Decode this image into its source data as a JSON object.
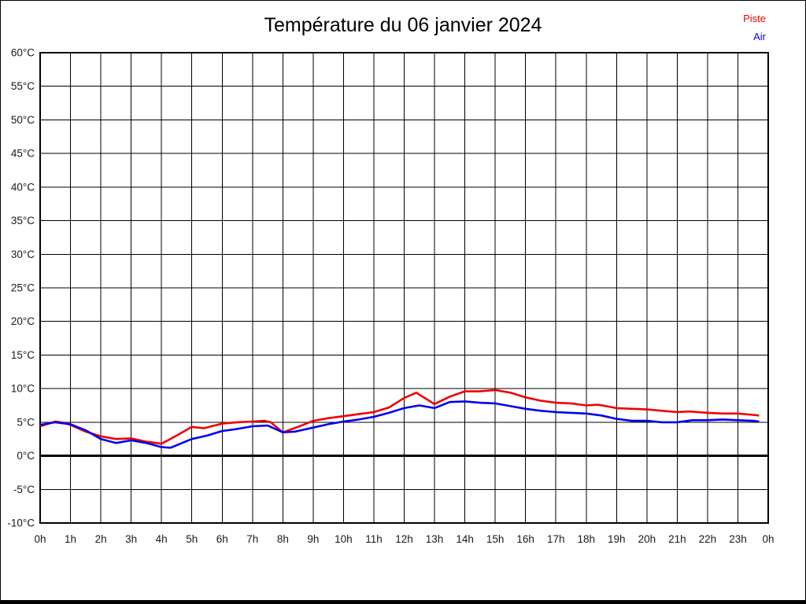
{
  "page": {
    "background": "#ffffff",
    "border_color": "#000000"
  },
  "chart_data": {
    "type": "line",
    "title": "Température du 06 janvier 2024",
    "xlabel": "",
    "ylabel": "",
    "grid": true,
    "grid_color": "#000000",
    "legend_position": "top-right",
    "x_range": [
      0,
      24
    ],
    "y_range": [
      -10,
      60
    ],
    "zero_line": {
      "value": 0,
      "color": "#000000",
      "width": 3
    },
    "x_axis": {
      "unit": "h",
      "ticks": [
        "0h",
        "1h",
        "2h",
        "3h",
        "4h",
        "5h",
        "6h",
        "7h",
        "8h",
        "9h",
        "10h",
        "11h",
        "12h",
        "13h",
        "14h",
        "15h",
        "16h",
        "17h",
        "18h",
        "19h",
        "20h",
        "21h",
        "22h",
        "23h",
        "0h"
      ]
    },
    "y_axis": {
      "unit": "°C",
      "ticks": [
        {
          "value": 60,
          "label": "60°C"
        },
        {
          "value": 55,
          "label": "55°C"
        },
        {
          "value": 50,
          "label": "50°C"
        },
        {
          "value": 45,
          "label": "45°C"
        },
        {
          "value": 40,
          "label": "40°C"
        },
        {
          "value": 35,
          "label": "35°C"
        },
        {
          "value": 30,
          "label": "30°C"
        },
        {
          "value": 25,
          "label": "25°C"
        },
        {
          "value": 20,
          "label": "20°C"
        },
        {
          "value": 15,
          "label": "15°C"
        },
        {
          "value": 10,
          "label": "10°C"
        },
        {
          "value": 5,
          "label": "5°C"
        },
        {
          "value": 0,
          "label": "0°C"
        },
        {
          "value": -5,
          "label": "-5°C"
        },
        {
          "value": -10,
          "label": "-10°C"
        }
      ]
    },
    "series": [
      {
        "name": "Piste",
        "color": "#f00000",
        "points": [
          [
            0,
            4.4
          ],
          [
            0.5,
            5.1
          ],
          [
            0.8,
            4.9
          ],
          [
            1,
            4.6
          ],
          [
            1.5,
            3.6
          ],
          [
            2,
            2.9
          ],
          [
            2.5,
            2.5
          ],
          [
            3,
            2.6
          ],
          [
            3.5,
            2.1
          ],
          [
            4,
            1.8
          ],
          [
            4.5,
            3.0
          ],
          [
            5,
            4.3
          ],
          [
            5.4,
            4.1
          ],
          [
            6,
            4.8
          ],
          [
            6.5,
            5.0
          ],
          [
            7,
            5.1
          ],
          [
            7.4,
            5.2
          ],
          [
            7.6,
            5.0
          ],
          [
            8,
            3.5
          ],
          [
            8.5,
            4.3
          ],
          [
            9,
            5.2
          ],
          [
            9.5,
            5.6
          ],
          [
            10,
            5.9
          ],
          [
            10.5,
            6.2
          ],
          [
            11,
            6.5
          ],
          [
            11.5,
            7.2
          ],
          [
            12,
            8.6
          ],
          [
            12.4,
            9.4
          ],
          [
            13,
            7.7
          ],
          [
            13.5,
            8.8
          ],
          [
            14,
            9.6
          ],
          [
            14.5,
            9.6
          ],
          [
            15,
            9.8
          ],
          [
            15.5,
            9.4
          ],
          [
            16,
            8.7
          ],
          [
            16.5,
            8.2
          ],
          [
            17,
            7.9
          ],
          [
            17.5,
            7.8
          ],
          [
            18,
            7.5
          ],
          [
            18.4,
            7.6
          ],
          [
            19,
            7.1
          ],
          [
            19.5,
            7.0
          ],
          [
            20,
            6.9
          ],
          [
            20.5,
            6.7
          ],
          [
            21,
            6.5
          ],
          [
            21.4,
            6.6
          ],
          [
            22,
            6.4
          ],
          [
            22.5,
            6.3
          ],
          [
            23,
            6.3
          ],
          [
            23.5,
            6.1
          ],
          [
            23.7,
            6.0
          ]
        ]
      },
      {
        "name": "Air",
        "color": "#0000f0",
        "points": [
          [
            0,
            4.6
          ],
          [
            0.5,
            5.0
          ],
          [
            1,
            4.7
          ],
          [
            1.5,
            3.8
          ],
          [
            2,
            2.5
          ],
          [
            2.5,
            1.9
          ],
          [
            3,
            2.3
          ],
          [
            3.5,
            1.9
          ],
          [
            4,
            1.3
          ],
          [
            4.3,
            1.2
          ],
          [
            5,
            2.5
          ],
          [
            5.5,
            3.0
          ],
          [
            6,
            3.7
          ],
          [
            6.5,
            4.0
          ],
          [
            7,
            4.4
          ],
          [
            7.5,
            4.5
          ],
          [
            8,
            3.5
          ],
          [
            8.4,
            3.6
          ],
          [
            9,
            4.2
          ],
          [
            9.5,
            4.7
          ],
          [
            10,
            5.1
          ],
          [
            10.5,
            5.4
          ],
          [
            11,
            5.8
          ],
          [
            11.5,
            6.4
          ],
          [
            12,
            7.1
          ],
          [
            12.5,
            7.5
          ],
          [
            13,
            7.1
          ],
          [
            13.5,
            8.0
          ],
          [
            14,
            8.1
          ],
          [
            14.5,
            7.9
          ],
          [
            15,
            7.8
          ],
          [
            15.5,
            7.4
          ],
          [
            16,
            7.0
          ],
          [
            16.5,
            6.7
          ],
          [
            17,
            6.5
          ],
          [
            17.5,
            6.4
          ],
          [
            18,
            6.3
          ],
          [
            18.5,
            6.0
          ],
          [
            19,
            5.5
          ],
          [
            19.5,
            5.2
          ],
          [
            20,
            5.2
          ],
          [
            20.5,
            5.0
          ],
          [
            21,
            5.0
          ],
          [
            21.5,
            5.3
          ],
          [
            22,
            5.3
          ],
          [
            22.5,
            5.4
          ],
          [
            23,
            5.3
          ],
          [
            23.5,
            5.2
          ],
          [
            23.7,
            5.1
          ]
        ]
      }
    ]
  }
}
